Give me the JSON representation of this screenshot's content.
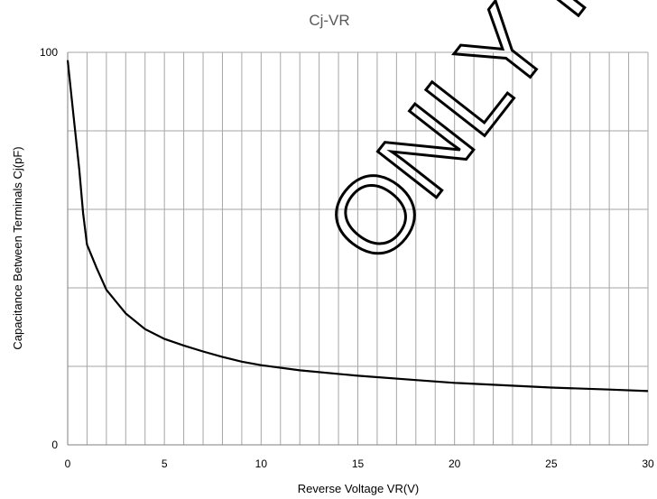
{
  "chart_data": {
    "type": "line",
    "title": "Cj-VR",
    "xlabel": "Reverse Voltage VR(V)",
    "ylabel": "Capacitance Between Terminals Cj(pF)",
    "xlim": [
      0,
      30
    ],
    "ylim": [
      0,
      100
    ],
    "x_ticks": [
      "0",
      "5",
      "10",
      "15",
      "20",
      "25",
      "30"
    ],
    "y_ticks": [
      "0",
      "100"
    ],
    "grid": true,
    "series": [
      {
        "color": "#000000",
        "x": [
          0,
          0.3,
          0.6,
          0.8,
          1,
          1.5,
          2,
          3,
          4,
          5,
          6,
          7,
          8,
          9,
          10,
          12,
          15,
          18,
          20,
          22,
          25,
          28,
          30
        ],
        "y": [
          98,
          84,
          70,
          59,
          51,
          45,
          39.5,
          33.5,
          29.5,
          27,
          25.3,
          23.8,
          22.4,
          21.2,
          20.3,
          19,
          17.6,
          16.5,
          15.8,
          15.3,
          14.6,
          14.1,
          13.7
        ]
      }
    ]
  },
  "watermark": "ONLY FOR"
}
